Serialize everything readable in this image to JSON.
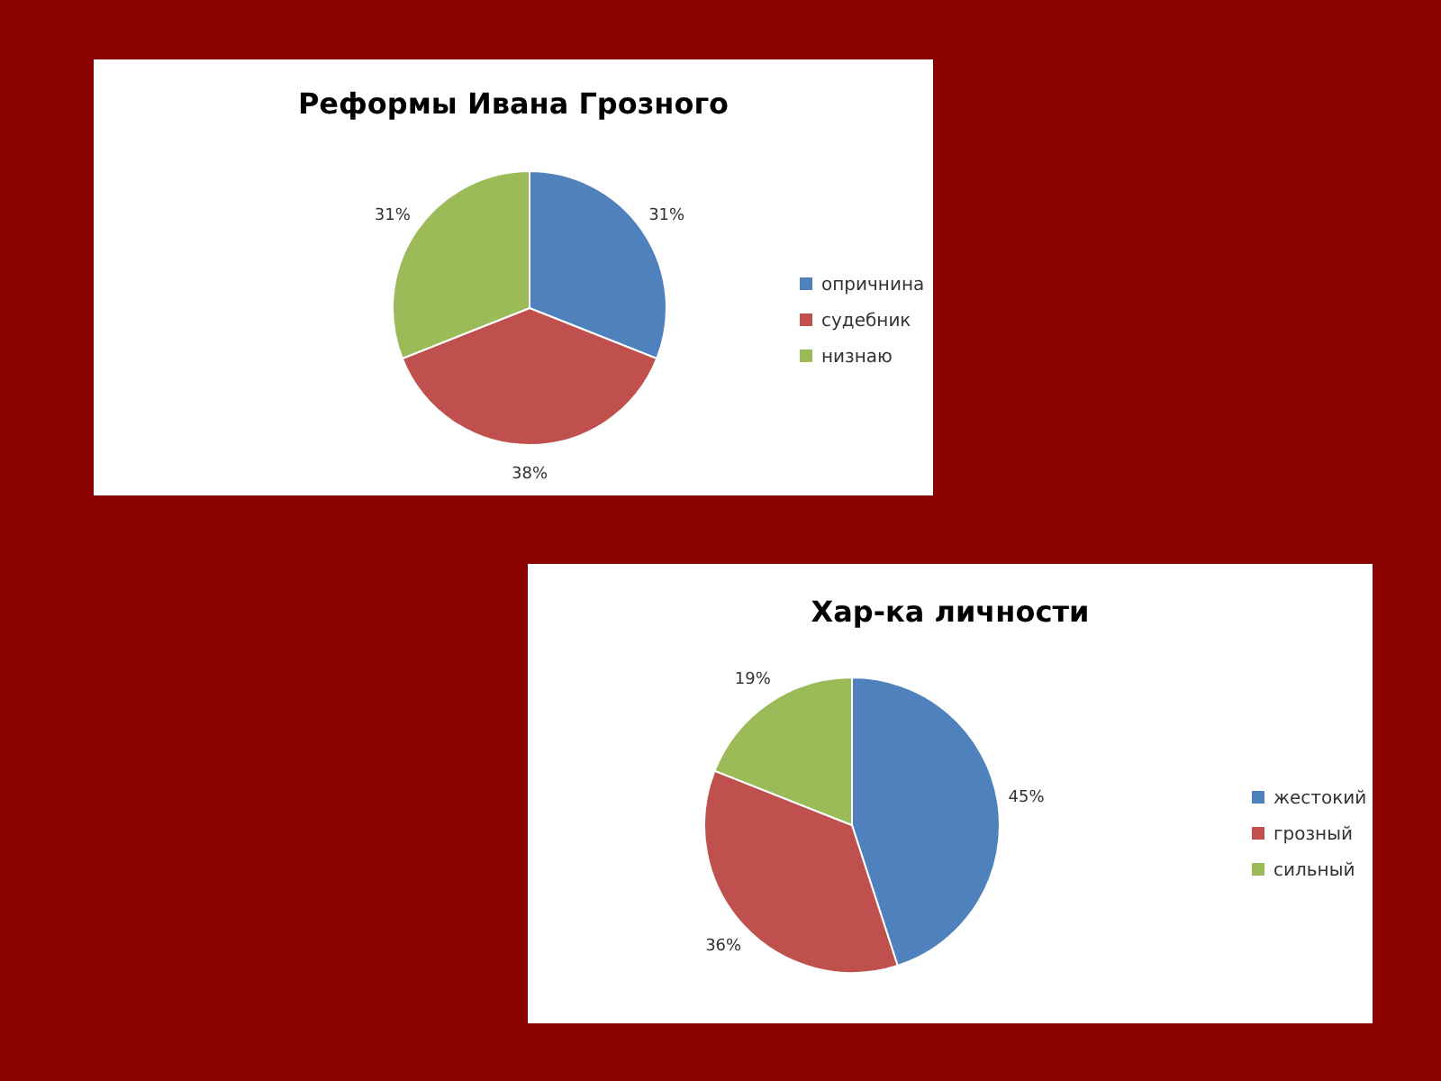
{
  "chart_data": [
    {
      "type": "pie",
      "title": "Реформы Ивана Грозного",
      "categories": [
        "опричнина",
        "судебник",
        "низнаю"
      ],
      "values": [
        31,
        38,
        31
      ],
      "colors": [
        "#4f81bd",
        "#c0504d",
        "#9bbb59"
      ],
      "value_labels": [
        "31%",
        "38%",
        "31%"
      ],
      "legend": "right"
    },
    {
      "type": "pie",
      "title": "Хар-ка личности",
      "categories": [
        "жестокий",
        "грозный",
        "сильный"
      ],
      "values": [
        45,
        36,
        19
      ],
      "colors": [
        "#4f81bd",
        "#c0504d",
        "#9bbb59"
      ],
      "value_labels": [
        "45%",
        "36%",
        "19%"
      ],
      "legend": "right"
    }
  ]
}
